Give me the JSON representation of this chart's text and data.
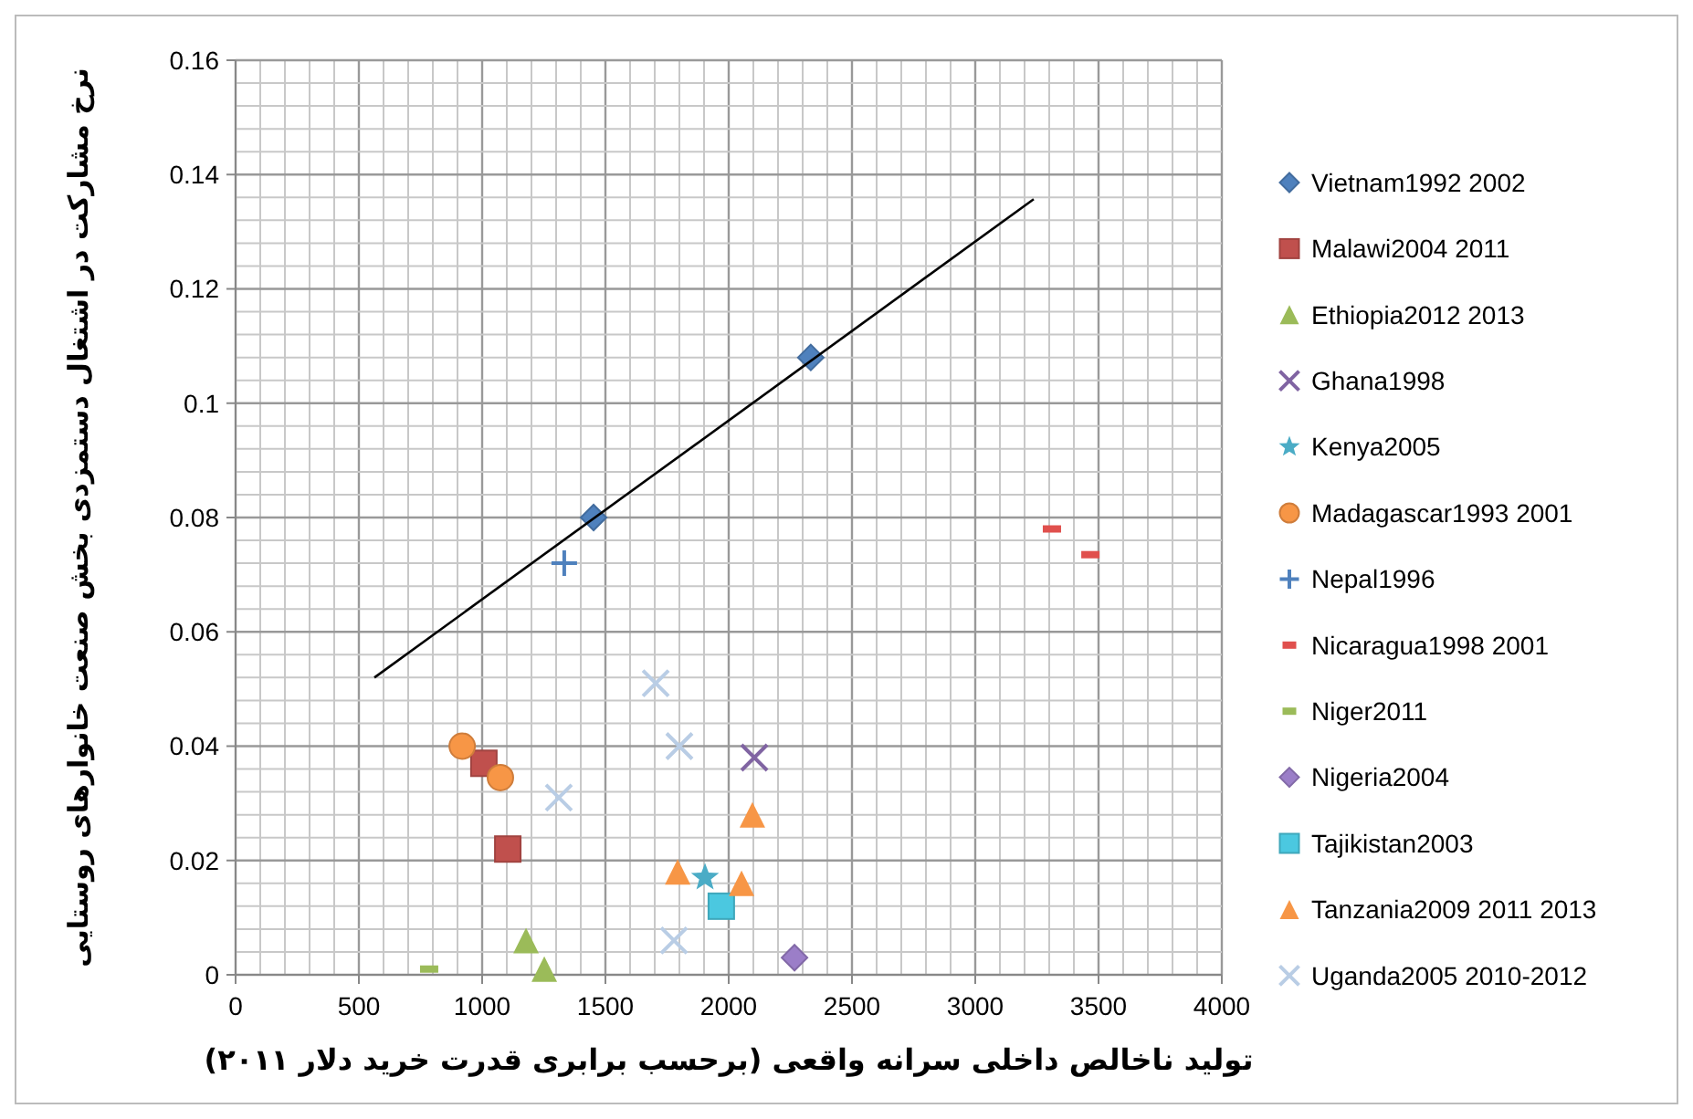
{
  "chart_data": {
    "type": "scatter",
    "xlabel": "تولید ناخالص داخلی سرانه واقعی (برحسب برابری قدرت خرید دلار ۲۰۱۱)",
    "ylabel": "نرخ مشارکت در اشتغال دستمزدی بخش صنعت خانوارهای روستایی",
    "xlim": [
      0,
      4000
    ],
    "xticks": [
      0,
      500,
      1000,
      1500,
      2000,
      2500,
      3000,
      3500,
      4000
    ],
    "ylim": [
      0,
      0.16
    ],
    "yticks": [
      0,
      0.02,
      0.04,
      0.06,
      0.08,
      {
        "value": 0.1,
        "label": "0.1"
      },
      0.12,
      0.14,
      0.16
    ],
    "grid": true,
    "legend": "right",
    "series": [
      {
        "name": "Vietnam1992 2002",
        "color": "#4f81bd",
        "marker": "diamond",
        "x": [
          1452,
          2333
        ],
        "values": [
          0.08,
          0.108
        ]
      },
      {
        "name": "Malawi2004 2011",
        "color": "#c0504d",
        "marker": "square",
        "x": [
          1007,
          1104
        ],
        "values": [
          0.037,
          0.022
        ]
      },
      {
        "name": "Ethiopia2012 2013",
        "color": "#9bbb59",
        "marker": "triangle",
        "x": [
          1178,
          1252
        ],
        "values": [
          0.006,
          0.001
        ]
      },
      {
        "name": "Ghana1998",
        "color": "#8064a2",
        "marker": "cross",
        "x": [
          2104
        ],
        "values": [
          0.038
        ]
      },
      {
        "name": "Kenya2005",
        "color": "#4bacc6",
        "marker": "star",
        "x": [
          1904
        ],
        "values": [
          0.017
        ]
      },
      {
        "name": "Madagascar1993 2001",
        "color": "#f79646",
        "marker": "circle",
        "x": [
          919,
          1074
        ],
        "values": [
          0.04,
          0.0345
        ]
      },
      {
        "name": "Nepal1996",
        "color": "#4f81bd",
        "marker": "plus",
        "x": [
          1333
        ],
        "values": [
          0.072
        ]
      },
      {
        "name": "Nicaragua1998 2001",
        "color": "#e0504d",
        "x": [
          3311,
          3467
        ],
        "values": [
          0.078,
          0.0735
        ]
      },
      {
        "name": "Niger2011",
        "color": "#9bbb59",
        "x": [
          785
        ],
        "values": [
          0.001
        ]
      },
      {
        "name": "Nigeria2004",
        "color": "#9b7ec8",
        "marker": "diamond",
        "x": [
          2267
        ],
        "values": [
          0.003
        ]
      },
      {
        "name": "Tajikistan2003",
        "color": "#4bc8e0",
        "marker": "square",
        "x": [
          1970
        ],
        "values": [
          0.012
        ]
      },
      {
        "name": "Tanzania2009 2011 2013",
        "color": "#f79646",
        "marker": "triangle",
        "x": [
          1793,
          2052,
          2096
        ],
        "values": [
          0.018,
          0.016,
          0.028
        ]
      },
      {
        "name": "Uganda2005 2010-2012",
        "color": "#b9cde5",
        "marker": "cross",
        "x": [
          1704,
          1800,
          1778,
          1311
        ],
        "values": [
          0.051,
          0.04,
          0.006,
          0.031
        ]
      },
      {
        "type": "line",
        "color": "#000000",
        "marker": "none",
        "x": [
          563,
          3237
        ],
        "values": [
          0.052,
          0.1357
        ]
      }
    ]
  }
}
